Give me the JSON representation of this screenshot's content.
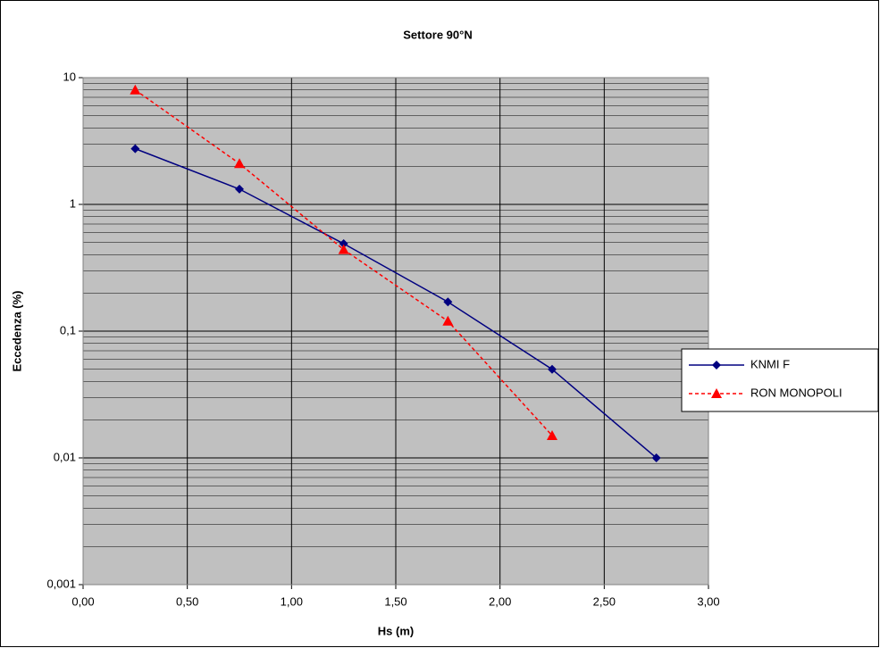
{
  "chart_data": {
    "type": "line",
    "title": "Settore 90°N",
    "x_label": "Hs (m)",
    "y_label": "Eccedenza (%)",
    "x": [
      0.25,
      0.75,
      1.25,
      1.75,
      2.25,
      2.75
    ],
    "series": [
      {
        "name": "KNMI F",
        "color": "#000080",
        "marker": "diamond",
        "line_style": "solid",
        "values": [
          2.75,
          1.32,
          0.49,
          0.17,
          0.05,
          0.01
        ]
      },
      {
        "name": "RON MONOPOLI",
        "color": "#ff0000",
        "marker": "triangle",
        "line_style": "dashed",
        "values": [
          8,
          2.1,
          0.44,
          0.12,
          0.015,
          null
        ]
      }
    ],
    "xlim": [
      0,
      3
    ],
    "xticks": [
      {
        "value": 0,
        "label": "0,00"
      },
      {
        "value": 0.5,
        "label": "0,50"
      },
      {
        "value": 1,
        "label": "1,00"
      },
      {
        "value": 1.5,
        "label": "1,50"
      },
      {
        "value": 2,
        "label": "2,00"
      },
      {
        "value": 2.5,
        "label": "2,50"
      },
      {
        "value": 3,
        "label": "3,00"
      }
    ],
    "ylim": [
      0.001,
      10
    ],
    "yticks": [
      {
        "value": 0.001,
        "label": "0,001"
      },
      {
        "value": 0.01,
        "label": "0,01"
      },
      {
        "value": 0.1,
        "label": "0,1"
      },
      1,
      10
    ],
    "y_scale": "log",
    "grid": true,
    "legend": "right"
  }
}
